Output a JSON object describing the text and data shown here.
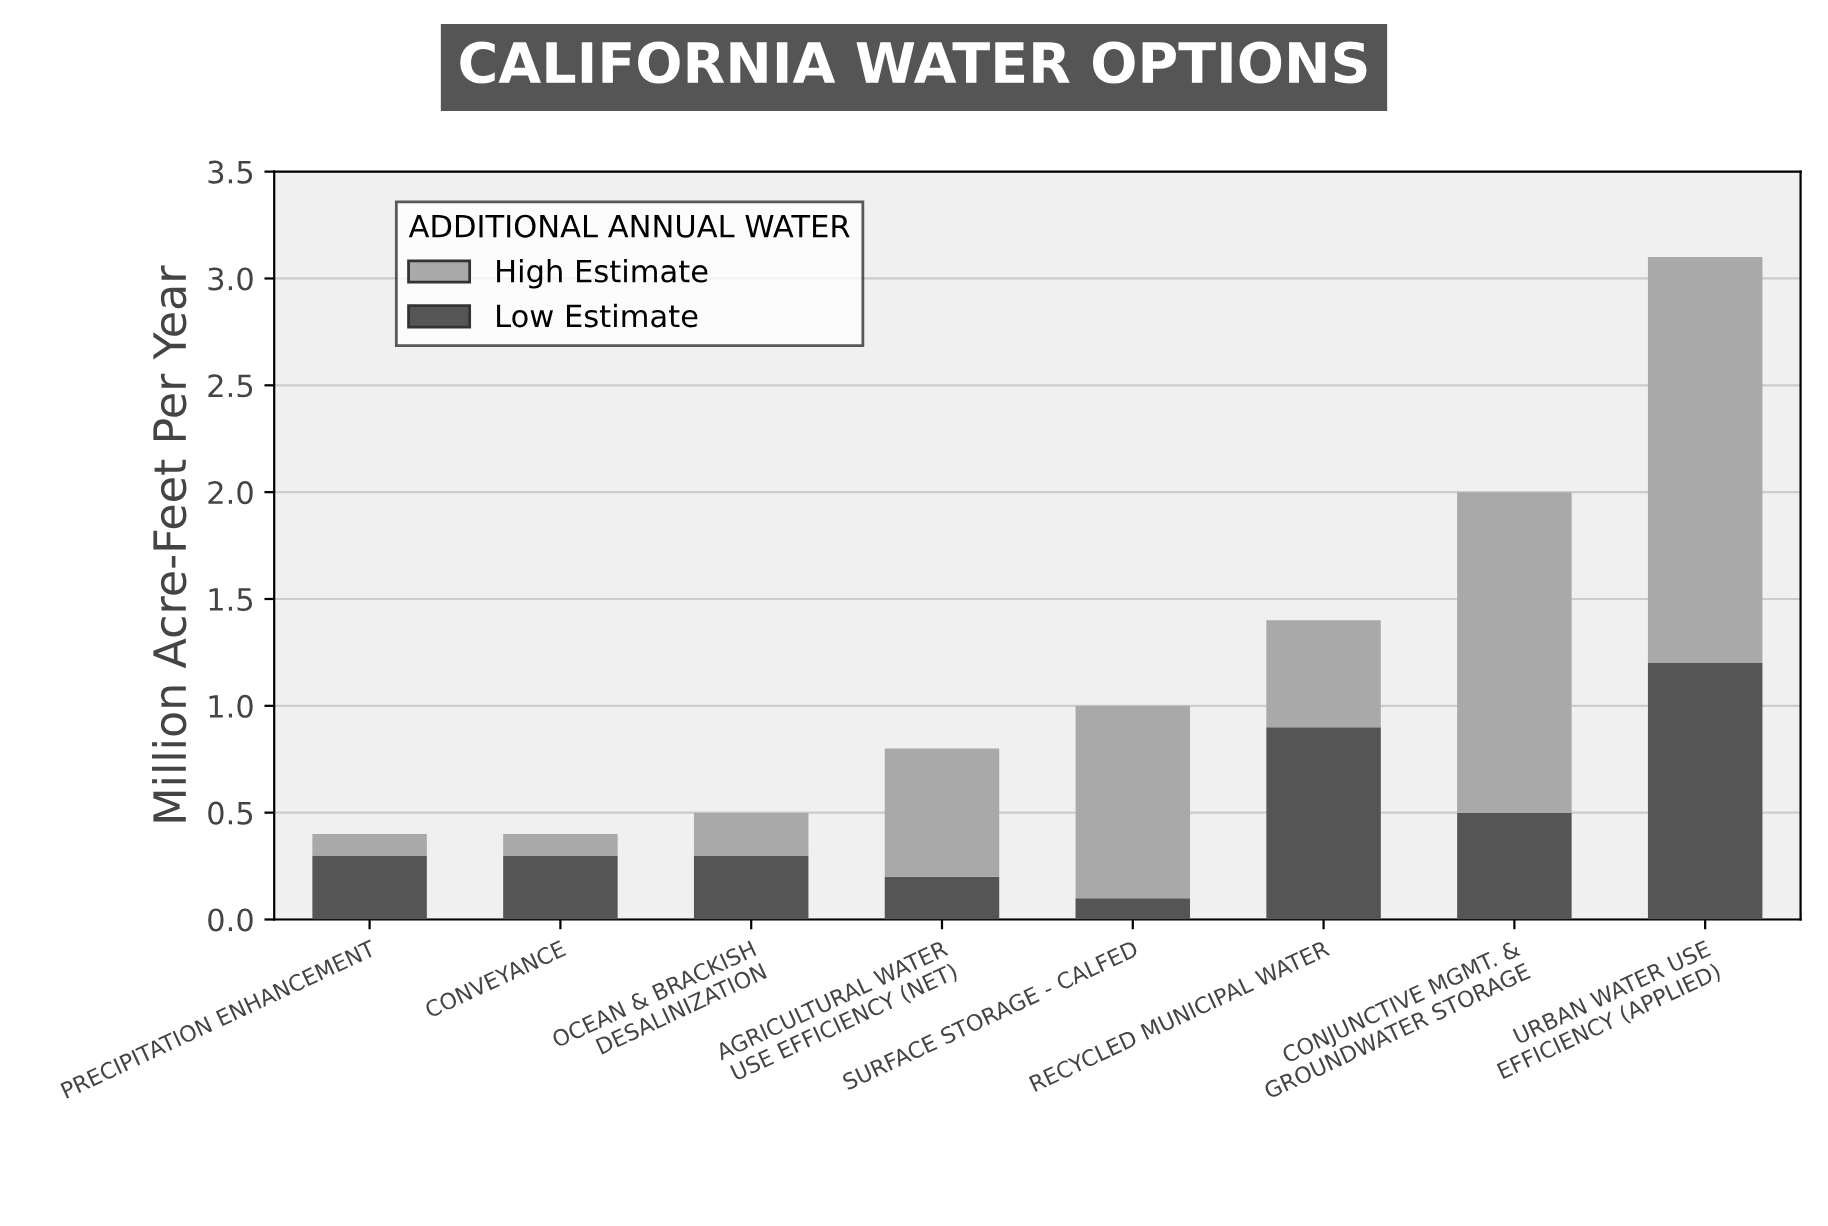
{
  "chart_data": {
    "type": "bar",
    "title": "CALIFORNIA WATER OPTIONS",
    "ylabel": "Million Acre-Feet Per Year",
    "legend_title": "ADDITIONAL ANNUAL WATER",
    "categories": [
      "PRECIPITATION ENHANCEMENT",
      "CONVEYANCE",
      "OCEAN & BRACKISH\nDESALINIZATION",
      "AGRICULTURAL WATER\nUSE EFFICIENCY (NET)",
      "SURFACE STORAGE - CALFED",
      "RECYCLED MUNICIPAL WATER",
      "CONJUNCTIVE MGMT. &\nGROUNDWATER STORAGE",
      "URBAN WATER USE\nEFFICIENCY (APPLIED)"
    ],
    "stacked": true,
    "series": [
      {
        "name": "Low Estimate",
        "color": "#555555",
        "values": [
          0.3,
          0.3,
          0.3,
          0.2,
          0.1,
          0.9,
          0.5,
          1.2
        ]
      },
      {
        "name": "High Estimate",
        "color": "#a9a9a9",
        "values": [
          0.1,
          0.1,
          0.2,
          0.6,
          0.9,
          0.5,
          1.5,
          1.9
        ]
      }
    ],
    "ylim": [
      0,
      3.5
    ],
    "yticks": [
      {
        "value": 0,
        "label": "0.0"
      },
      {
        "value": 0.5,
        "label": "0.5"
      },
      {
        "value": 1,
        "label": "1.0"
      },
      {
        "value": 1.5,
        "label": "1.5"
      },
      {
        "value": 2,
        "label": "2.0"
      },
      {
        "value": 2.5,
        "label": "2.5"
      },
      {
        "value": 3,
        "label": "3.0"
      },
      {
        "value": 3.5,
        "label": "3.5"
      }
    ],
    "grid": "y",
    "legend": "top left"
  }
}
